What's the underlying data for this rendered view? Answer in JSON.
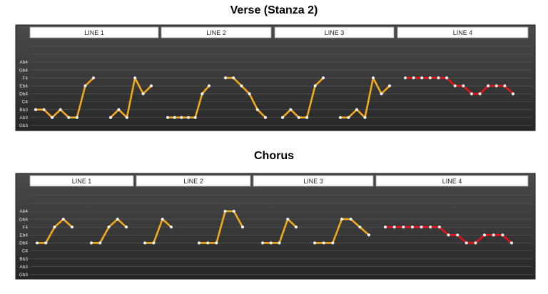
{
  "chart_data": [
    {
      "type": "line",
      "title": "Verse (Stanza 2)",
      "y_categories": [
        "Gb3",
        "Ab3",
        "Bb3",
        "C4",
        "Db4",
        "Eb4",
        "F4",
        "Gb4",
        "Ab4"
      ],
      "xlabel": "",
      "ylabel": "",
      "grid": true,
      "background": "dark-gray",
      "sections": [
        {
          "label": "LINE 1",
          "color": "#f3a91d",
          "phrases": [
            [
              "Bb3",
              "Bb3",
              "Ab3",
              "Bb3",
              "Ab3",
              "Ab3",
              "Eb4",
              "F4"
            ],
            [
              "Ab3",
              "Bb3",
              "Ab3",
              "F4",
              "Db4",
              "Eb4"
            ]
          ]
        },
        {
          "label": "LINE 2",
          "color": "#f3a91d",
          "phrases": [
            [
              "Ab3",
              "Ab3",
              "Ab3",
              "Ab3",
              "Ab3",
              "Db4",
              "Eb4"
            ],
            [
              "F4",
              "F4",
              "Eb4",
              "Db4",
              "Bb3",
              "Ab3"
            ]
          ]
        },
        {
          "label": "LINE 3",
          "color": "#f3a91d",
          "phrases": [
            [
              "Ab3",
              "Bb3",
              "Ab3",
              "Ab3",
              "Eb4",
              "F4"
            ],
            [
              "Ab3",
              "Ab3",
              "Bb3",
              "Ab3",
              "F4",
              "Db4",
              "Eb4"
            ]
          ]
        },
        {
          "label": "LINE 4",
          "color": "#e8141b",
          "phrases": [
            [
              "F4",
              "F4",
              "F4",
              "F4",
              "F4",
              "F4",
              "Eb4",
              "Eb4",
              "Db4",
              "Db4",
              "Eb4",
              "Eb4",
              "Eb4",
              "Db4"
            ]
          ]
        }
      ]
    },
    {
      "type": "line",
      "title": "Chorus",
      "y_categories": [
        "Gb3",
        "Ab3",
        "Bb3",
        "C4",
        "Db4",
        "Eb4",
        "F4",
        "Gb4",
        "Ab4"
      ],
      "xlabel": "",
      "ylabel": "",
      "grid": true,
      "background": "dark-gray",
      "sections": [
        {
          "label": "LINE 1",
          "color": "#f3a91d",
          "phrases": [
            [
              "Db4",
              "Db4",
              "F4",
              "Gb4",
              "F4"
            ],
            [
              "Db4",
              "Db4",
              "F4",
              "Gb4",
              "F4"
            ]
          ]
        },
        {
          "label": "LINE 2",
          "color": "#f3a91d",
          "phrases": [
            [
              "Db4",
              "Db4",
              "Gb4",
              "F4"
            ],
            [
              "Db4",
              "Db4",
              "Db4",
              "Ab4",
              "Ab4",
              "F4"
            ]
          ]
        },
        {
          "label": "LINE 3",
          "color": "#f3a91d",
          "phrases": [
            [
              "Db4",
              "Db4",
              "Db4",
              "Gb4",
              "F4"
            ],
            [
              "Db4",
              "Db4",
              "Db4",
              "Gb4",
              "Gb4",
              "F4",
              "Eb4"
            ]
          ]
        },
        {
          "label": "LINE 4",
          "color": "#e8141b",
          "phrases": [
            [
              "F4",
              "F4",
              "F4",
              "F4",
              "F4",
              "F4",
              "F4",
              "Eb4",
              "Eb4",
              "Db4",
              "Db4",
              "Eb4",
              "Eb4",
              "Eb4",
              "Db4"
            ]
          ]
        }
      ]
    }
  ]
}
